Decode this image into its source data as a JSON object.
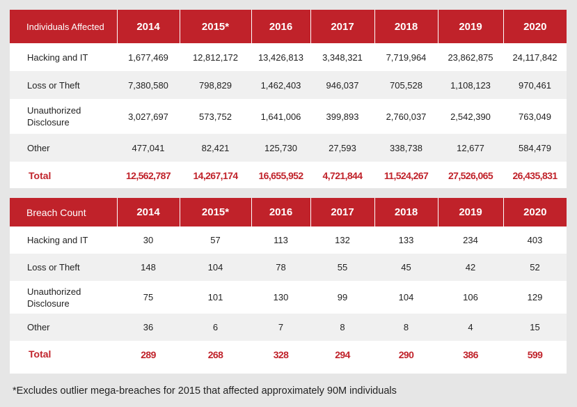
{
  "individuals": {
    "header": [
      "Individuals Affected",
      "2014",
      "2015*",
      "2016",
      "2017",
      "2018",
      "2019",
      "2020"
    ],
    "rows": [
      {
        "label": "Hacking and IT",
        "values": [
          "1,677,469",
          "12,812,172",
          "13,426,813",
          "3,348,321",
          "7,719,964",
          "23,862,875",
          "24,117,842"
        ]
      },
      {
        "label": "Loss or Theft",
        "values": [
          "7,380,580",
          "798,829",
          "1,462,403",
          "946,037",
          "705,528",
          "1,108,123",
          "970,461"
        ]
      },
      {
        "label": "Unauthorized Disclosure",
        "values": [
          "3,027,697",
          "573,752",
          "1,641,006",
          "399,893",
          "2,760,037",
          "2,542,390",
          "763,049"
        ]
      },
      {
        "label": "Other",
        "values": [
          "477,041",
          "82,421",
          "125,730",
          "27,593",
          "338,738",
          "12,677",
          "584,479"
        ]
      }
    ],
    "total": {
      "label": "Total",
      "values": [
        "12,562,787",
        "14,267,174",
        "16,655,952",
        "4,721,844",
        "11,524,267",
        "27,526,065",
        "26,435,831"
      ]
    }
  },
  "breaches": {
    "header": [
      "Breach Count",
      "2014",
      "2015*",
      "2016",
      "2017",
      "2018",
      "2019",
      "2020"
    ],
    "rows": [
      {
        "label": "Hacking and IT",
        "values": [
          "30",
          "57",
          "113",
          "132",
          "133",
          "234",
          "403"
        ]
      },
      {
        "label": "Loss or Theft",
        "values": [
          "148",
          "104",
          "78",
          "55",
          "45",
          "42",
          "52"
        ]
      },
      {
        "label": "Unauthorized Disclosure",
        "values": [
          "75",
          "101",
          "130",
          "99",
          "104",
          "106",
          "129"
        ]
      },
      {
        "label": "Other",
        "values": [
          "36",
          "6",
          "7",
          "8",
          "8",
          "4",
          "15"
        ]
      }
    ],
    "total": {
      "label": "Total",
      "values": [
        "289",
        "268",
        "328",
        "294",
        "290",
        "386",
        "599"
      ]
    }
  },
  "footnote": "*Excludes outlier mega-breaches for 2015 that affected approximately 90M individuals",
  "colors": {
    "accent": "#c0222a",
    "background": "#e6e6e6",
    "shade": "#f0f0f0"
  }
}
